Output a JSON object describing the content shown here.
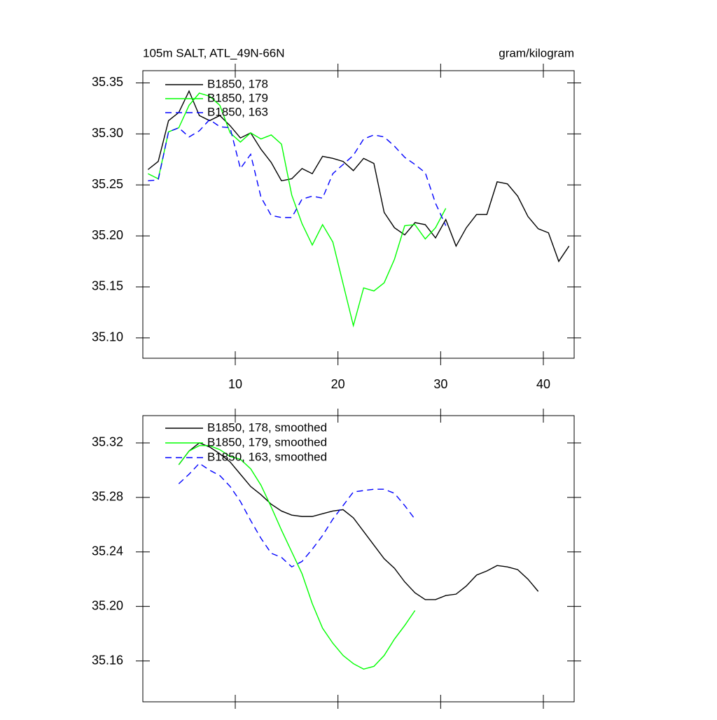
{
  "chart_data": [
    {
      "type": "line",
      "title": "105m SALT, ATL_49N-66N",
      "units": "gram/kilogram",
      "xlim": [
        1,
        43
      ],
      "xticks": [
        10,
        20,
        30,
        40
      ],
      "show_xtick_labels": true,
      "ylim": [
        35.08,
        35.362
      ],
      "yticks": [
        {
          "value": 35.1,
          "label": "35.10"
        },
        35.15,
        {
          "value": 35.2,
          "label": "35.20"
        },
        35.25,
        {
          "value": 35.3,
          "label": "35.30"
        },
        35.35
      ],
      "series": [
        {
          "name": "B1850, 178",
          "color": "#000000",
          "dashed": false,
          "x": [
            1.5,
            2.5,
            3.5,
            4.5,
            5.5,
            6.5,
            7.5,
            8.5,
            9.5,
            10.5,
            11.5,
            12.5,
            13.5,
            14.5,
            15.5,
            16.5,
            17.5,
            18.5,
            19.5,
            20.5,
            21.5,
            22.5,
            23.5,
            24.5,
            25.5,
            26.5,
            27.5,
            28.5,
            29.5,
            30.5,
            31.5,
            32.5,
            33.5,
            34.5,
            35.5,
            36.5,
            37.5,
            38.5,
            39.5,
            40.5,
            41.5,
            42.5
          ],
          "values": [
            35.265,
            35.273,
            35.313,
            35.321,
            35.342,
            35.318,
            35.313,
            35.318,
            35.308,
            35.296,
            35.301,
            35.285,
            35.272,
            35.254,
            35.256,
            35.266,
            35.261,
            35.278,
            35.276,
            35.273,
            35.264,
            35.276,
            35.271,
            35.223,
            35.208,
            35.201,
            35.213,
            35.211,
            35.198,
            35.216,
            35.19,
            35.208,
            35.221,
            35.221,
            35.253,
            35.251,
            35.239,
            35.219,
            35.207,
            35.203,
            35.175,
            35.19
          ]
        },
        {
          "name": "B1850, 179",
          "color": "#00ff00",
          "dashed": false,
          "x": [
            1.5,
            2.5,
            3.5,
            4.5,
            5.5,
            6.5,
            7.5,
            8.5,
            9.5,
            10.5,
            11.5,
            12.5,
            13.5,
            14.5,
            15.5,
            16.5,
            17.5,
            18.5,
            19.5,
            20.5,
            21.5,
            22.5,
            23.5,
            24.5,
            25.5,
            26.5,
            27.5,
            28.5,
            29.5,
            30.5
          ],
          "values": [
            35.261,
            35.256,
            35.302,
            35.306,
            35.328,
            35.34,
            35.337,
            35.328,
            35.301,
            35.292,
            35.301,
            35.295,
            35.299,
            35.29,
            35.24,
            35.212,
            35.191,
            35.211,
            35.194,
            35.153,
            35.112,
            35.149,
            35.146,
            35.154,
            35.177,
            35.21,
            35.211,
            35.197,
            35.208,
            35.227
          ]
        },
        {
          "name": "B1850, 163",
          "color": "#0000ff",
          "dashed": true,
          "x": [
            1.5,
            2.5,
            3.5,
            4.5,
            5.5,
            6.5,
            7.5,
            8.5,
            9.5,
            10.5,
            11.5,
            12.5,
            13.5,
            14.5,
            15.5,
            16.5,
            17.5,
            18.5,
            19.5,
            20.5,
            21.5,
            22.5,
            23.5,
            24.5,
            25.5,
            26.5,
            27.5,
            28.5,
            29.5,
            30.5
          ],
          "values": [
            35.254,
            35.255,
            35.302,
            35.306,
            35.297,
            35.303,
            35.314,
            35.307,
            35.306,
            35.266,
            35.28,
            35.238,
            35.22,
            35.218,
            35.218,
            35.236,
            35.239,
            35.237,
            35.261,
            35.27,
            35.279,
            35.295,
            35.299,
            35.297,
            35.288,
            35.277,
            35.27,
            35.262,
            35.232,
            35.21
          ]
        }
      ]
    },
    {
      "type": "line",
      "xlim": [
        1,
        43
      ],
      "xticks": [
        10,
        20,
        30,
        40
      ],
      "show_xtick_labels": false,
      "ylim": [
        35.13,
        35.34
      ],
      "yticks": [
        35.16,
        {
          "value": 35.2,
          "label": "35.20"
        },
        35.24,
        35.28,
        35.32
      ],
      "series": [
        {
          "name": "B1850, 178, smoothed",
          "color": "#000000",
          "dashed": false,
          "x": [
            4.5,
            5.5,
            6.5,
            7.5,
            8.5,
            9.5,
            10.5,
            11.5,
            12.5,
            13.5,
            14.5,
            15.5,
            16.5,
            17.5,
            18.5,
            19.5,
            20.5,
            21.5,
            22.5,
            23.5,
            24.5,
            25.5,
            26.5,
            27.5,
            28.5,
            29.5,
            30.5,
            31.5,
            32.5,
            33.5,
            34.5,
            35.5,
            36.5,
            37.5,
            38.5,
            39.5
          ],
          "values": [
            35.304,
            35.314,
            35.32,
            35.317,
            35.312,
            35.306,
            35.297,
            35.288,
            35.282,
            35.275,
            35.27,
            35.267,
            35.266,
            35.266,
            35.268,
            35.27,
            35.271,
            35.265,
            35.255,
            35.245,
            35.235,
            35.228,
            35.218,
            35.21,
            35.205,
            35.205,
            35.208,
            35.209,
            35.215,
            35.223,
            35.226,
            35.23,
            35.229,
            35.227,
            35.22,
            35.211
          ]
        },
        {
          "name": "B1850, 179, smoothed",
          "color": "#00ff00",
          "dashed": false,
          "x": [
            4.5,
            5.5,
            6.5,
            7.5,
            8.5,
            9.5,
            10.5,
            11.5,
            12.5,
            13.5,
            14.5,
            15.5,
            16.5,
            17.5,
            18.5,
            19.5,
            20.5,
            21.5,
            22.5,
            23.5,
            24.5,
            25.5,
            26.5,
            27.5
          ],
          "values": [
            35.304,
            35.314,
            35.318,
            35.318,
            35.315,
            35.31,
            35.308,
            35.301,
            35.289,
            35.273,
            35.256,
            35.24,
            35.224,
            35.202,
            35.184,
            35.173,
            35.164,
            35.158,
            35.154,
            35.156,
            35.164,
            35.176,
            35.186,
            35.197
          ]
        },
        {
          "name": "B1850, 163, smoothed",
          "color": "#0000ff",
          "dashed": true,
          "x": [
            4.5,
            5.5,
            6.5,
            7.5,
            8.5,
            9.5,
            10.5,
            11.5,
            12.5,
            13.5,
            14.5,
            15.5,
            16.5,
            17.5,
            18.5,
            19.5,
            20.5,
            21.5,
            22.5,
            23.5,
            24.5,
            25.5,
            26.5,
            27.5
          ],
          "values": [
            35.29,
            35.297,
            35.305,
            35.3,
            35.296,
            35.288,
            35.277,
            35.263,
            35.25,
            35.239,
            35.236,
            35.229,
            35.233,
            35.242,
            35.252,
            35.264,
            35.274,
            35.284,
            35.285,
            35.286,
            35.286,
            35.283,
            35.274,
            35.264
          ]
        }
      ]
    }
  ]
}
